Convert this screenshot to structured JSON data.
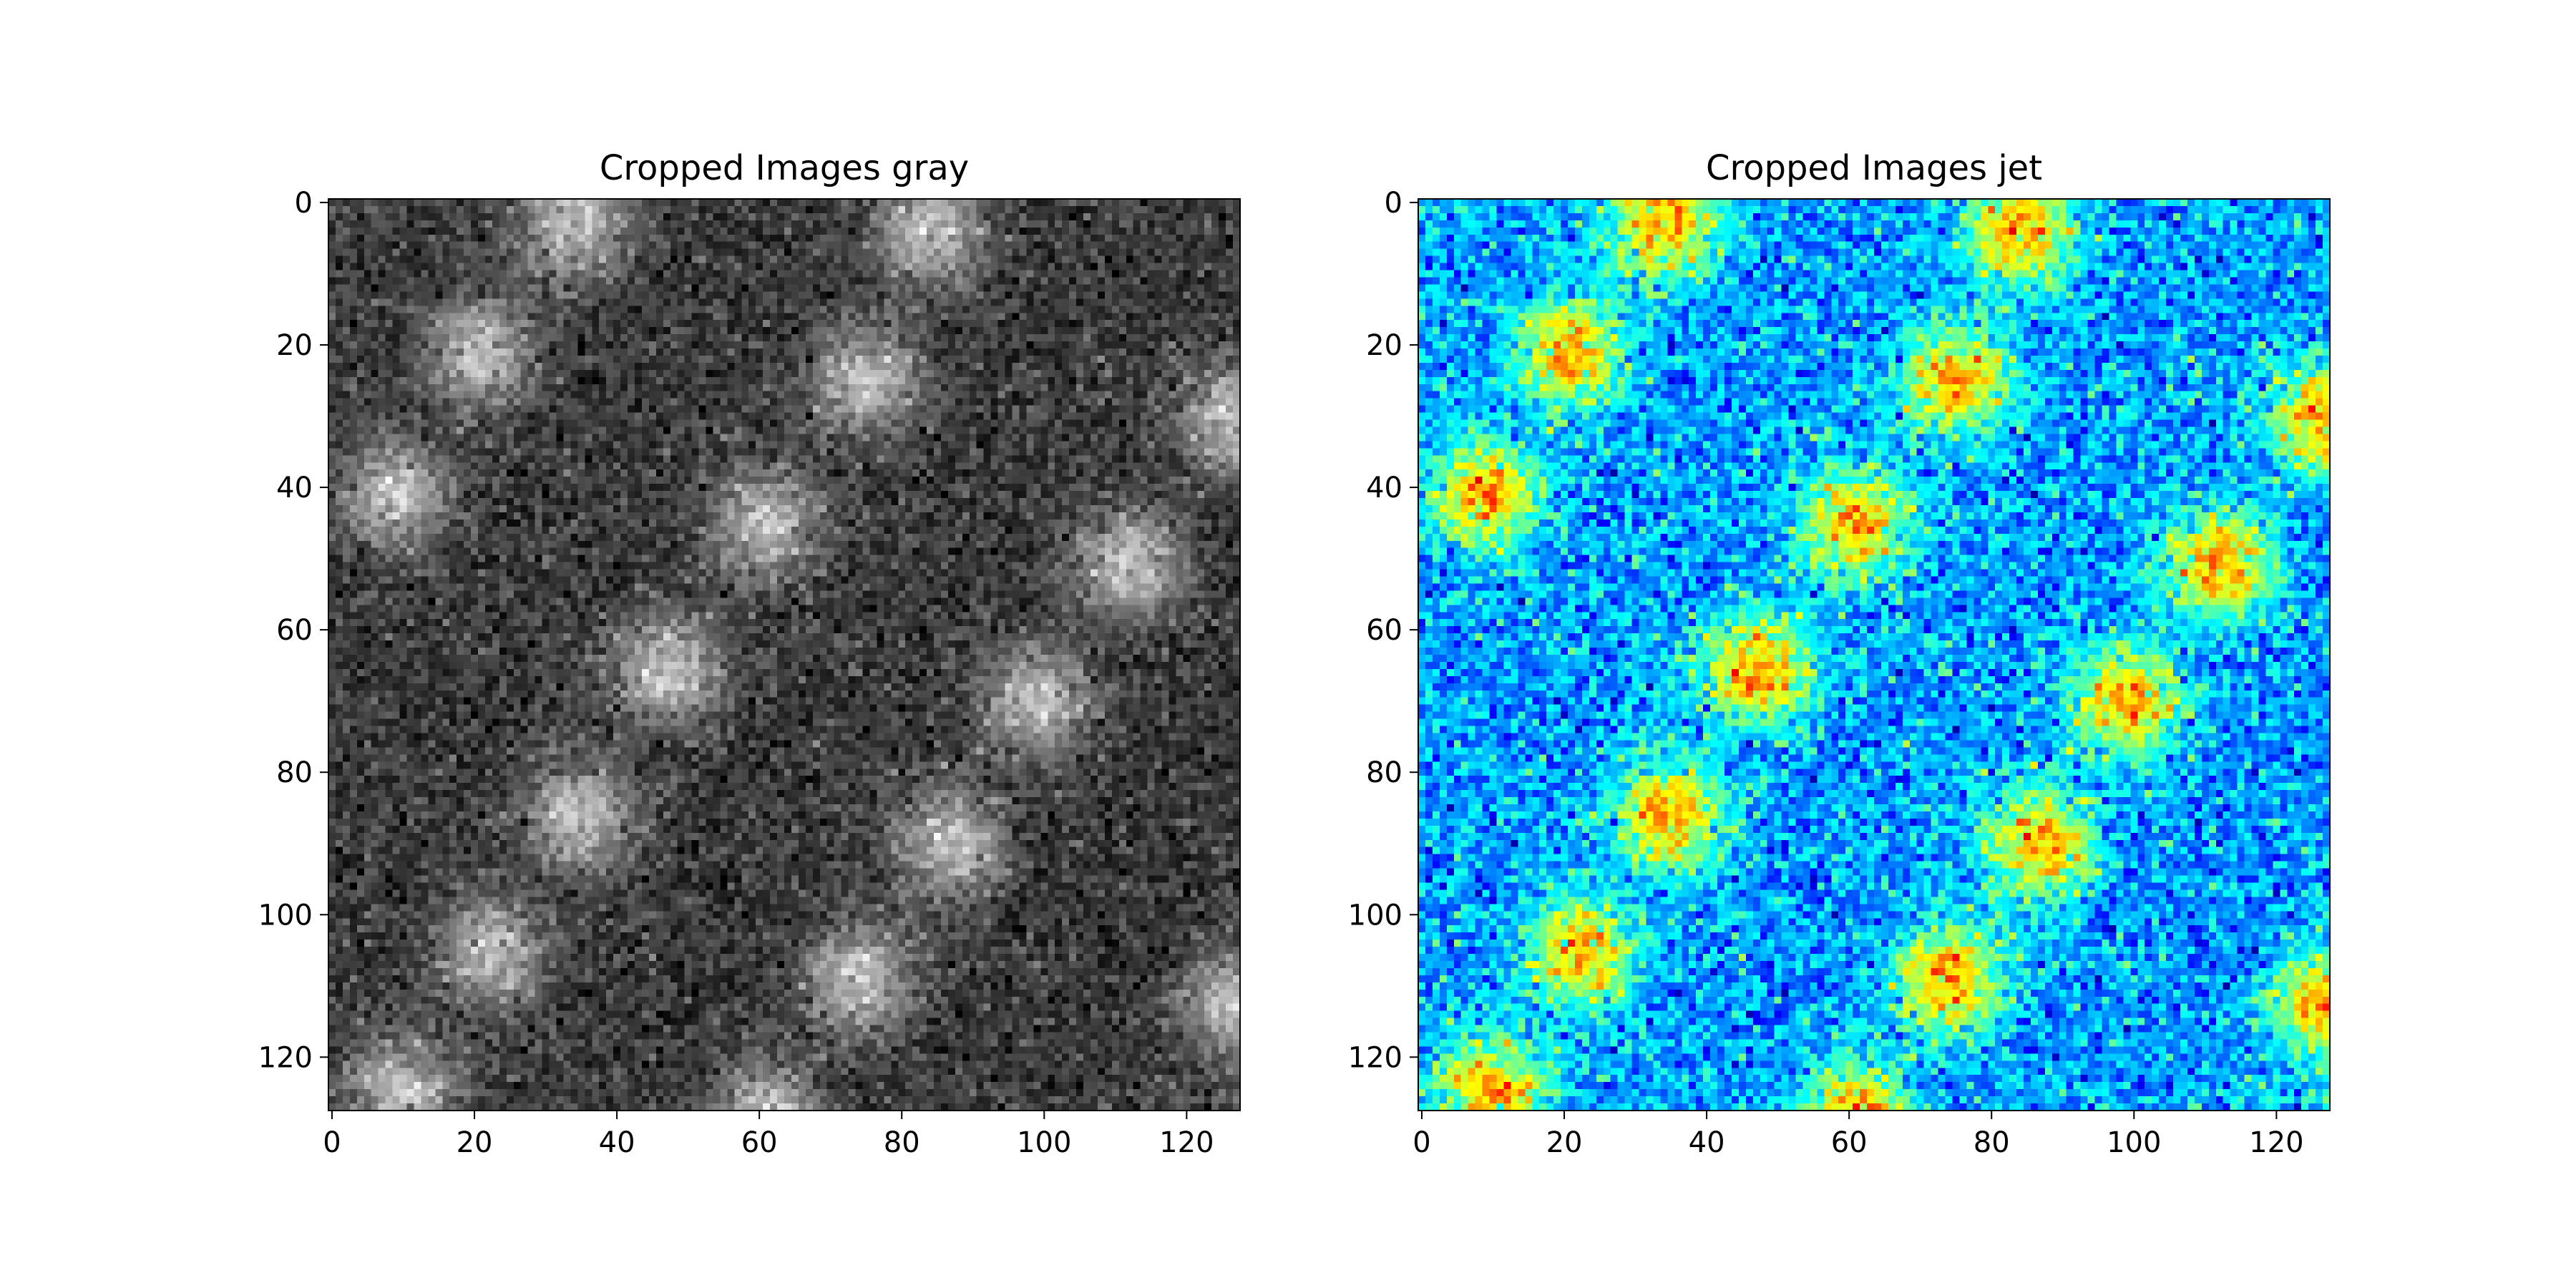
{
  "chart_data": [
    {
      "type": "heatmap",
      "title": "Cropped Images gray",
      "colormap": "gray",
      "xlabel": "",
      "ylabel": "",
      "shape": [
        128,
        128
      ],
      "xlim": [
        -0.5,
        127.5
      ],
      "ylim": [
        127.5,
        -0.5
      ],
      "xticks": [
        0,
        20,
        40,
        60,
        80,
        100,
        120
      ],
      "yticks": [
        0,
        20,
        40,
        60,
        80,
        100,
        120
      ],
      "grid": false,
      "description_values": {
        "value_range": [
          0,
          1
        ],
        "background_level": 0.25,
        "blob_peak_level": 1.0,
        "blob_centers": [
          [
            34,
            3
          ],
          [
            84,
            4
          ],
          [
            21,
            21
          ],
          [
            75,
            25
          ],
          [
            127,
            30
          ],
          [
            9,
            41
          ],
          [
            61,
            45
          ],
          [
            112,
            51
          ],
          [
            47,
            66
          ],
          [
            99,
            70
          ],
          [
            35,
            86
          ],
          [
            87,
            90
          ],
          [
            22,
            105
          ],
          [
            74,
            109
          ],
          [
            127,
            113
          ],
          [
            10,
            125
          ],
          [
            61,
            128
          ]
        ]
      }
    },
    {
      "type": "heatmap",
      "title": "Cropped Images jet",
      "colormap": "jet",
      "xlabel": "",
      "ylabel": "",
      "shape": [
        128,
        128
      ],
      "xlim": [
        -0.5,
        127.5
      ],
      "ylim": [
        127.5,
        -0.5
      ],
      "xticks": [
        0,
        20,
        40,
        60,
        80,
        100,
        120
      ],
      "yticks": [
        0,
        20,
        40,
        60,
        80,
        100,
        120
      ],
      "grid": false,
      "description_values": {
        "value_range": [
          0,
          1
        ],
        "background_level": 0.25,
        "blob_peak_level": 1.0,
        "blob_centers": [
          [
            34,
            3
          ],
          [
            84,
            4
          ],
          [
            21,
            21
          ],
          [
            75,
            25
          ],
          [
            127,
            30
          ],
          [
            9,
            41
          ],
          [
            61,
            45
          ],
          [
            112,
            51
          ],
          [
            47,
            66
          ],
          [
            99,
            70
          ],
          [
            35,
            86
          ],
          [
            87,
            90
          ],
          [
            22,
            105
          ],
          [
            74,
            109
          ],
          [
            127,
            113
          ],
          [
            10,
            125
          ],
          [
            61,
            128
          ]
        ]
      }
    }
  ]
}
